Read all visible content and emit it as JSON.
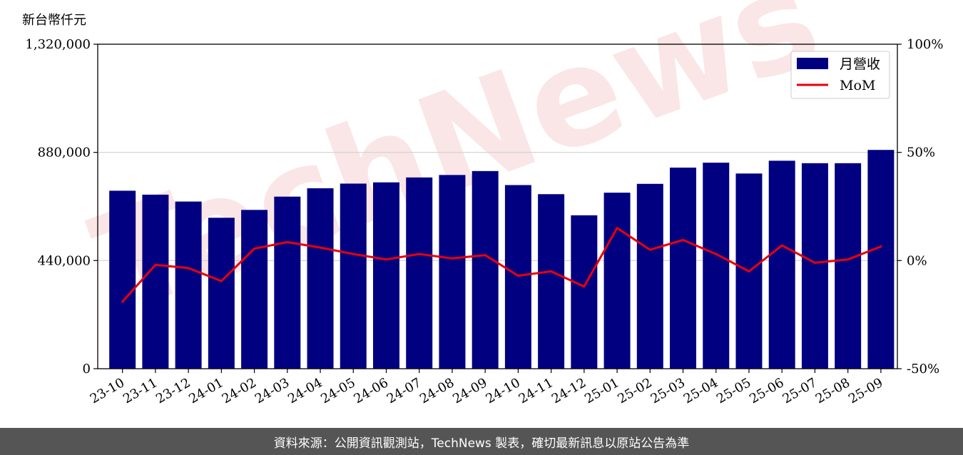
{
  "chart_data": {
    "type": "bar",
    "unit_label": "新台幣仟元",
    "categories": [
      "23-10",
      "23-11",
      "23-12",
      "24-01",
      "24-02",
      "24-03",
      "24-04",
      "24-05",
      "24-06",
      "24-07",
      "24-08",
      "24-09",
      "24-10",
      "24-11",
      "24-12",
      "25-01",
      "25-02",
      "25-03",
      "25-04",
      "25-05",
      "25-06",
      "25-07",
      "25-08",
      "25-09"
    ],
    "series": [
      {
        "name": "月營收",
        "axis": "left",
        "type": "bar",
        "color": "#000080",
        "values": [
          724000,
          708000,
          680000,
          614000,
          646000,
          700000,
          734000,
          753000,
          758000,
          778000,
          788000,
          804000,
          747000,
          710000,
          624000,
          716000,
          752000,
          818000,
          838000,
          794000,
          846000,
          836000,
          836000,
          890000
        ]
      },
      {
        "name": "MoM",
        "axis": "right",
        "type": "line",
        "color": "#e8000b",
        "values": [
          -19,
          -2,
          -3.5,
          -9.5,
          5.5,
          8.5,
          6,
          3,
          0.5,
          3,
          1,
          2.5,
          -7,
          -5,
          -12,
          15,
          5,
          9.5,
          3,
          -5,
          7,
          -1,
          0.5,
          6.5
        ]
      }
    ],
    "y_left": {
      "ylim": [
        0,
        1320000
      ],
      "ticks": [
        0,
        440000,
        880000,
        1320000
      ],
      "tick_labels": [
        "0",
        "440,000",
        "880,000",
        "1,320,000"
      ]
    },
    "y_right": {
      "ylim": [
        -50,
        100
      ],
      "ticks": [
        -50,
        0,
        50,
        100
      ],
      "tick_labels": [
        "-50%",
        "0%",
        "50%",
        "100%"
      ]
    },
    "grid": "horizontal",
    "legend": "top-right"
  },
  "watermark": "TechNews",
  "footer": {
    "text": "資料來源：公開資訊觀測站，TechNews 製表，確切最新訊息以原站公告為準"
  }
}
